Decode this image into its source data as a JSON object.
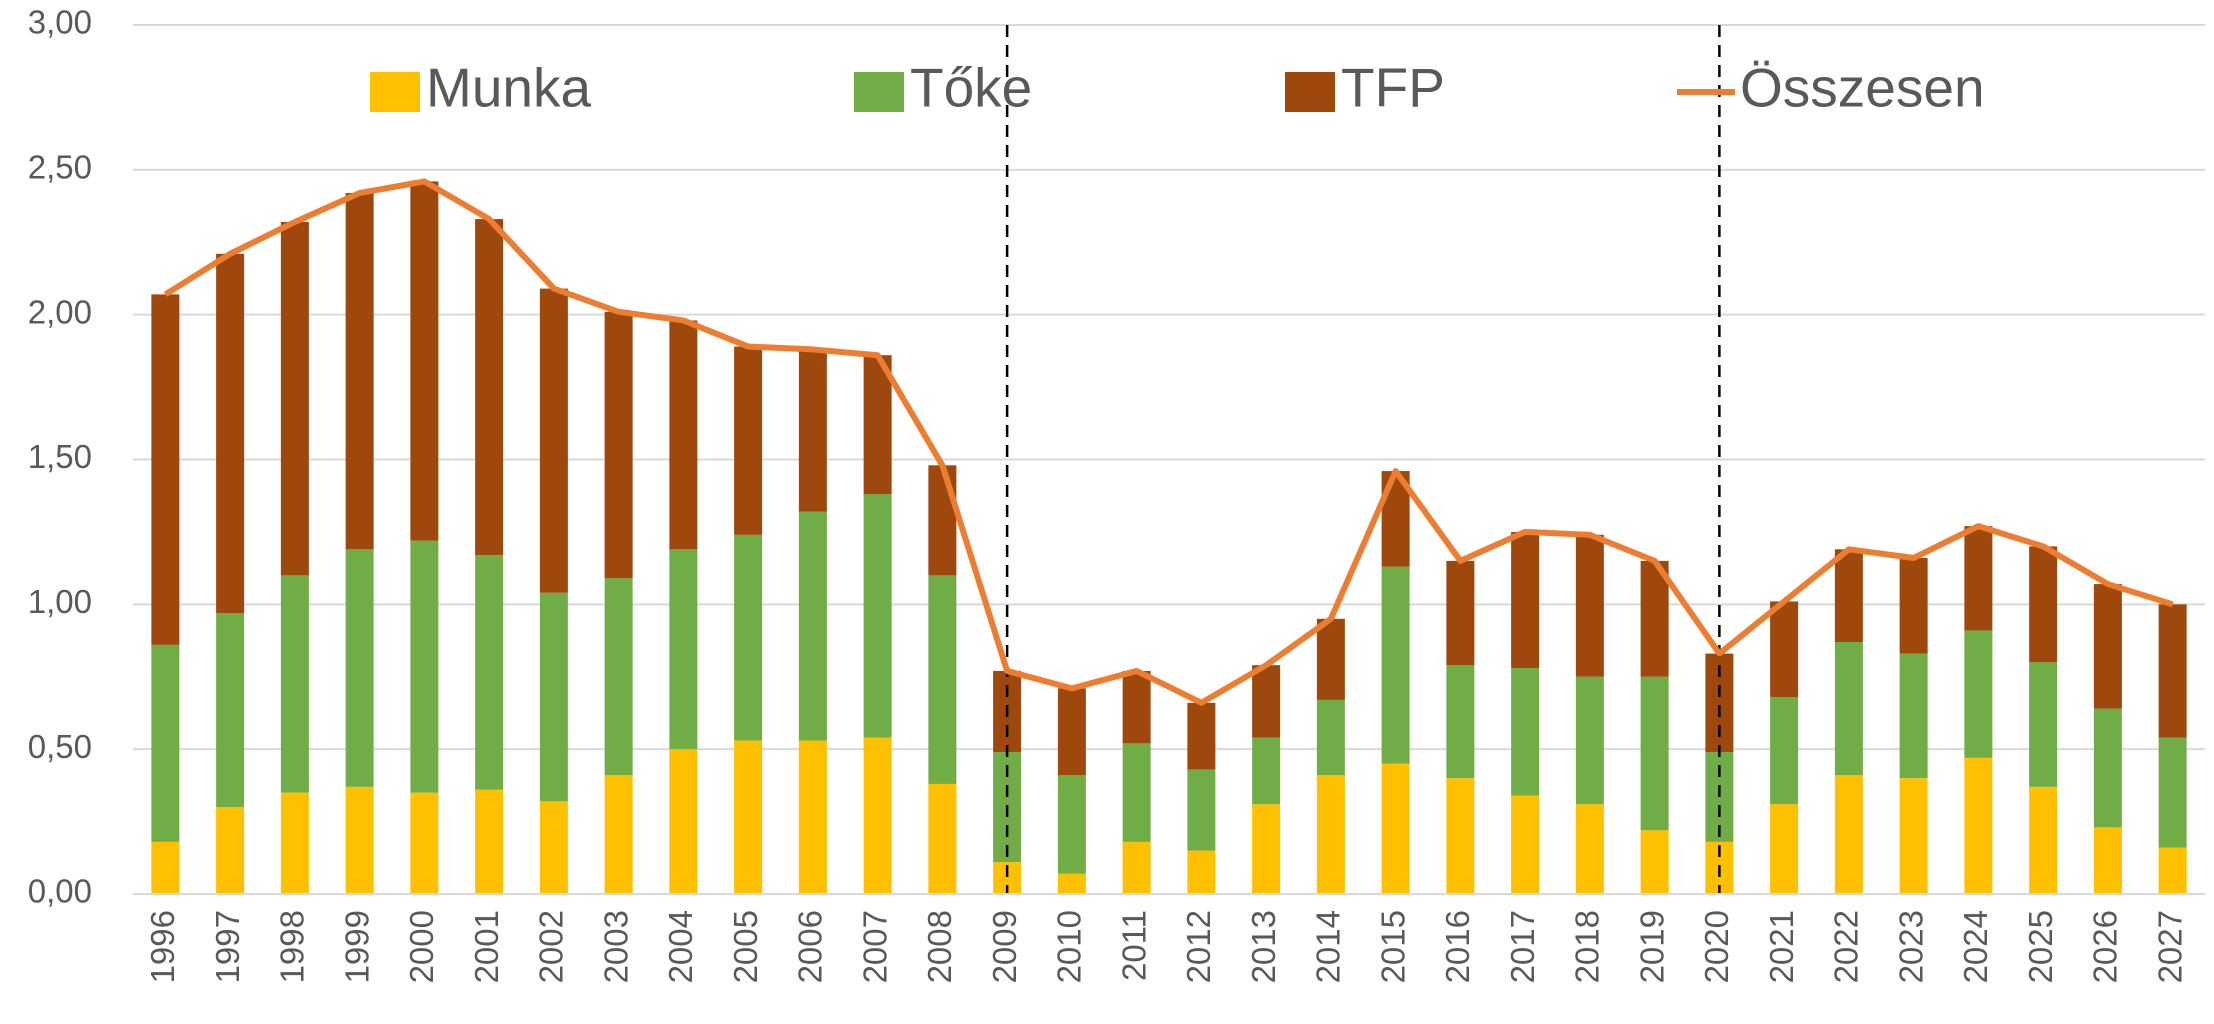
{
  "chart_data": {
    "type": "stacked_bar_line",
    "categories": [
      "1996",
      "1997",
      "1998",
      "1999",
      "2000",
      "2001",
      "2002",
      "2003",
      "2004",
      "2005",
      "2006",
      "2007",
      "2008",
      "2009",
      "2010",
      "2011",
      "2012",
      "2013",
      "2014",
      "2015",
      "2016",
      "2017",
      "2018",
      "2019",
      "2020",
      "2021",
      "2022",
      "2023",
      "2024",
      "2025",
      "2026",
      "2027"
    ],
    "series": [
      {
        "name": "Munka",
        "color": "#FFC000",
        "values": [
          0.18,
          0.3,
          0.35,
          0.37,
          0.35,
          0.36,
          0.32,
          0.41,
          0.5,
          0.53,
          0.53,
          0.54,
          0.38,
          0.11,
          0.07,
          0.18,
          0.15,
          0.31,
          0.41,
          0.45,
          0.4,
          0.34,
          0.31,
          0.22,
          0.18,
          0.31,
          0.41,
          0.4,
          0.47,
          0.37,
          0.23,
          0.16
        ]
      },
      {
        "name": "Tőke",
        "color": "#70AD47",
        "values": [
          0.68,
          0.67,
          0.75,
          0.82,
          0.87,
          0.81,
          0.72,
          0.68,
          0.69,
          0.71,
          0.79,
          0.84,
          0.72,
          0.38,
          0.34,
          0.34,
          0.28,
          0.23,
          0.26,
          0.68,
          0.39,
          0.44,
          0.44,
          0.53,
          0.31,
          0.37,
          0.46,
          0.43,
          0.44,
          0.43,
          0.41,
          0.38
        ]
      },
      {
        "name": "TFP",
        "color": "#9E480E",
        "values": [
          1.21,
          1.24,
          1.22,
          1.23,
          1.24,
          1.16,
          1.05,
          0.92,
          0.79,
          0.65,
          0.56,
          0.48,
          0.38,
          0.28,
          0.3,
          0.25,
          0.23,
          0.25,
          0.28,
          0.33,
          0.36,
          0.47,
          0.49,
          0.4,
          0.34,
          0.33,
          0.32,
          0.33,
          0.36,
          0.4,
          0.43,
          0.46
        ]
      },
      {
        "name": "Összesen",
        "color": "#ED7D31",
        "type": "line",
        "values": [
          2.07,
          2.21,
          2.32,
          2.42,
          2.46,
          2.33,
          2.09,
          2.01,
          1.98,
          1.89,
          1.88,
          1.86,
          1.48,
          0.77,
          0.71,
          0.77,
          0.66,
          0.79,
          0.95,
          1.46,
          1.15,
          1.25,
          1.24,
          1.15,
          0.83,
          1.01,
          1.19,
          1.16,
          1.27,
          1.2,
          1.07,
          1.0
        ]
      }
    ],
    "ylim": [
      0,
      3
    ],
    "yticks": [
      {
        "value": 0,
        "label": "0,00"
      },
      {
        "value": 0.5,
        "label": "0,50"
      },
      {
        "value": 1,
        "label": "1,00"
      },
      {
        "value": 1.5,
        "label": "1,50"
      },
      {
        "value": 2,
        "label": "2,00"
      },
      {
        "value": 2.5,
        "label": "2,50"
      },
      {
        "value": 3,
        "label": "3,00"
      }
    ],
    "grid": true,
    "legend": "top"
  }
}
